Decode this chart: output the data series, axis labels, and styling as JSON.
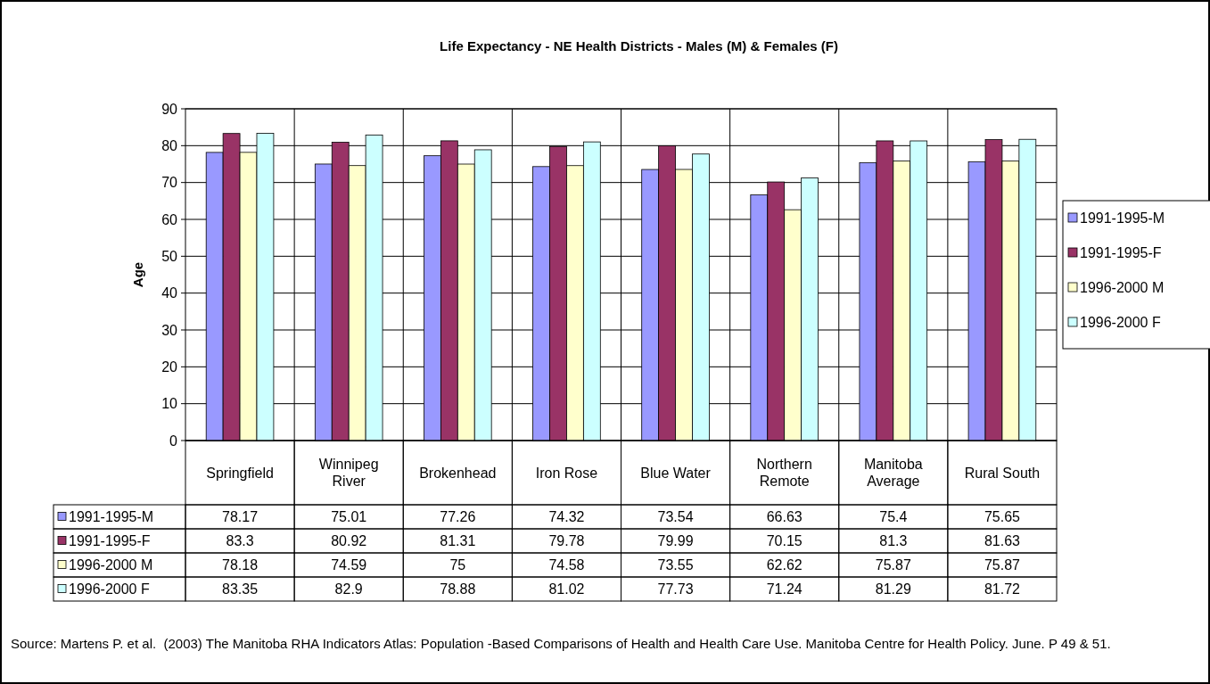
{
  "chart_data": {
    "type": "bar",
    "title": "Life Expectancy - NE Health Districts - Males (M) & Females (F)",
    "ylabel": "Age",
    "categories": [
      "Springfield",
      "Winnipeg River",
      "Brokenhead",
      "Iron Rose",
      "Blue Water",
      "Northern Remote",
      "Manitoba Average",
      "Rural South"
    ],
    "series": [
      {
        "name": "1991-1995-M",
        "color": "#9999ff",
        "values": [
          78.17,
          75.01,
          77.26,
          74.32,
          73.54,
          66.63,
          75.4,
          75.65
        ]
      },
      {
        "name": "1991-1995-F",
        "color": "#993366",
        "values": [
          83.3,
          80.92,
          81.31,
          79.78,
          79.99,
          70.15,
          81.3,
          81.63
        ]
      },
      {
        "name": "1996-2000 M",
        "color": "#ffffcc",
        "values": [
          78.18,
          74.59,
          75,
          74.58,
          73.55,
          62.62,
          75.87,
          75.87
        ]
      },
      {
        "name": "1996-2000 F",
        "color": "#ccffff",
        "values": [
          83.35,
          82.9,
          78.88,
          81.02,
          77.73,
          71.24,
          81.29,
          81.72
        ]
      }
    ],
    "ylim": [
      0,
      90
    ],
    "yticks": [
      0,
      10,
      20,
      30,
      40,
      50,
      60,
      70,
      80,
      90
    ],
    "grid": "y",
    "legend": "right",
    "data_labels": true,
    "annotations": [
      "Source: Martens P. et al.  (2003) The Manitoba RHA Indicators Atlas: Population -Based Comparisons of Health and Health Care Use. Manitoba Centre for Health Policy. June. P 49 & 51."
    ]
  }
}
